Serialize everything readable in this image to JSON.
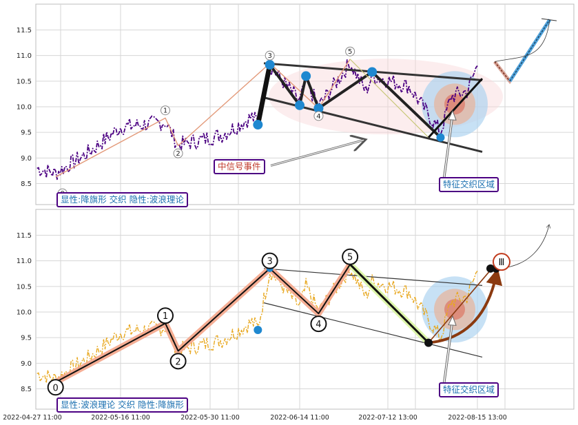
{
  "chart_data": [
    {
      "type": "line",
      "panel": "top",
      "title": "",
      "xlabel": "",
      "ylabel": "",
      "ylim": [
        8.1,
        12.0
      ],
      "yticks": [
        8.5,
        9.0,
        9.5,
        10.0,
        10.5,
        11.0,
        11.5
      ],
      "grid": true,
      "price_series_color": "#4b0082",
      "wave_points": [
        {
          "label": "0",
          "x": "2022-05-02",
          "y": 8.63
        },
        {
          "label": "1",
          "x": "2022-05-23",
          "y": 9.78
        },
        {
          "label": "2",
          "x": "2022-05-25",
          "y": 9.24
        },
        {
          "label": "3",
          "x": "2022-06-09",
          "y": 10.85
        },
        {
          "label": "4",
          "x": "2022-06-20",
          "y": 9.97
        },
        {
          "label": "5",
          "x": "2022-06-30",
          "y": 10.93
        }
      ],
      "pattern_points": [
        {
          "x": "2022-06-07",
          "y": 9.65
        },
        {
          "x": "2022-06-09",
          "y": 10.82
        },
        {
          "x": "2022-06-14",
          "y": 10.03
        },
        {
          "x": "2022-06-16",
          "y": 10.6
        },
        {
          "x": "2022-06-20",
          "y": 9.97
        },
        {
          "x": "2022-07-07",
          "y": 10.68
        },
        {
          "x": "2022-08-01",
          "y": 9.4
        }
      ],
      "annotations": {
        "signal_event": "中信号事件",
        "feature_zone": "特征交织区域",
        "summary": "显性:降旗形 交织 隐性:波浪理论"
      }
    },
    {
      "type": "line",
      "panel": "bottom",
      "title": "",
      "xlabel": "",
      "ylabel": "",
      "ylim": [
        8.1,
        12.0
      ],
      "yticks": [
        8.5,
        9.0,
        9.5,
        10.0,
        10.5,
        11.0,
        11.5
      ],
      "grid": true,
      "price_series_color": "#e8a820",
      "wave_points": [
        {
          "label": "0",
          "x": "2022-05-02",
          "y": 8.63
        },
        {
          "label": "1",
          "x": "2022-05-23",
          "y": 9.78
        },
        {
          "label": "2",
          "x": "2022-05-25",
          "y": 9.24
        },
        {
          "label": "3",
          "x": "2022-06-09",
          "y": 10.85
        },
        {
          "label": "4",
          "x": "2022-06-20",
          "y": 9.97
        },
        {
          "label": "5",
          "x": "2022-06-30",
          "y": 10.93
        }
      ],
      "wave_III_label": "Ⅲ",
      "annotations": {
        "feature_zone": "特征交织区域",
        "summary": "显性:波浪理论 交织 隐性:降旗形"
      }
    }
  ],
  "x_axis": {
    "tick_labels": [
      "2022-04-27 11:00",
      "2022-05-16 11:00",
      "2022-05-30 11:00",
      "2022-06-14 11:00",
      "2022-07-12 13:00",
      "2022-08-15 13:00"
    ]
  }
}
